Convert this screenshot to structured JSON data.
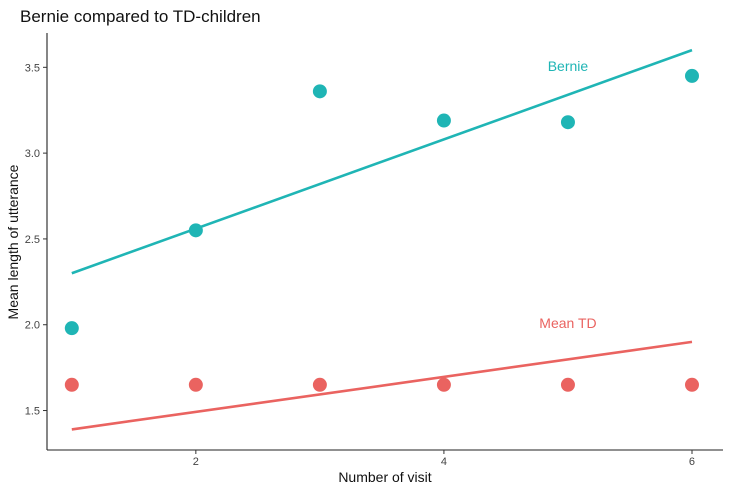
{
  "chart_data": {
    "type": "scatter",
    "title": "Bernie compared to TD-children",
    "xlabel": "Number of visit",
    "ylabel": "Mean length of utterance",
    "xlim": [
      0.8,
      6.25
    ],
    "ylim": [
      1.27,
      3.7
    ],
    "x_ticks": [
      2,
      4,
      6
    ],
    "y_ticks": [
      1.5,
      2.0,
      2.5,
      3.0,
      3.5
    ],
    "x_tick_labels": [
      "2",
      "4",
      "6"
    ],
    "y_tick_labels": [
      "1.5",
      "2.0",
      "2.5",
      "3.0",
      "3.5"
    ],
    "grid": false,
    "legend": "none",
    "series": [
      {
        "name": "Bernie",
        "color": "#1fb5b5",
        "x": [
          1,
          2,
          3,
          4,
          5,
          6
        ],
        "y": [
          1.98,
          2.55,
          3.36,
          3.19,
          3.18,
          3.45
        ],
        "trend": {
          "x": [
            1,
            6
          ],
          "y": [
            2.3,
            3.6
          ]
        }
      },
      {
        "name": "Mean TD",
        "color": "#ea6360",
        "x": [
          1,
          2,
          3,
          4,
          5,
          6
        ],
        "y": [
          1.65,
          1.65,
          1.65,
          1.65,
          1.65,
          1.65
        ],
        "trend": {
          "x": [
            1,
            6
          ],
          "y": [
            1.39,
            1.9
          ]
        }
      }
    ],
    "annotations": [
      {
        "text": "Bernie",
        "series": 0,
        "x": 5.0,
        "y": 3.48
      },
      {
        "text": "Mean TD",
        "series": 1,
        "x": 5.0,
        "y": 1.98
      }
    ]
  }
}
